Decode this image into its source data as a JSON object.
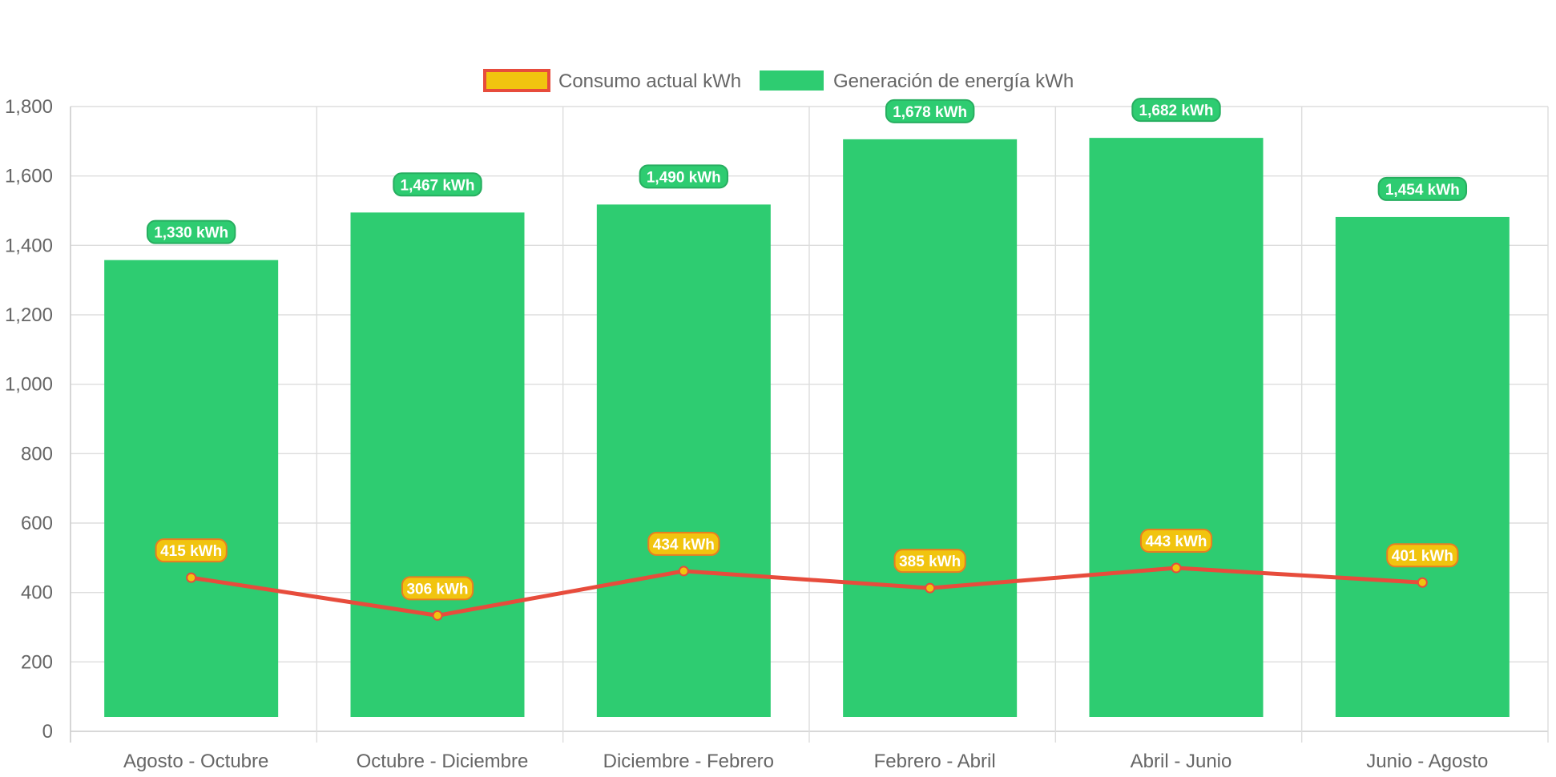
{
  "chart_data": {
    "type": "bar",
    "categories": [
      "Agosto - Octubre",
      "Octubre - Diciembre",
      "Diciembre - Febrero",
      "Febrero - Abril",
      "Abril - Junio",
      "Junio - Agosto"
    ],
    "series": [
      {
        "name": "Generación de energía kWh",
        "type": "bar",
        "color": "#2ecc71",
        "values": [
          1330,
          1467,
          1490,
          1678,
          1682,
          1454
        ],
        "labels": [
          "1,330 kWh",
          "1,467 kWh",
          "1,490 kWh",
          "1,678 kWh",
          "1,682 kWh",
          "1,454 kWh"
        ]
      },
      {
        "name": "Consumo actual kWh",
        "type": "line",
        "color": "#e74c3c",
        "point_color": "#f1c40f",
        "values": [
          415,
          306,
          434,
          385,
          443,
          401
        ],
        "labels": [
          "415 kWh",
          "306 kWh",
          "434 kWh",
          "385 kWh",
          "443 kWh",
          "401 kWh"
        ]
      }
    ],
    "legend": {
      "position": "top",
      "items": [
        {
          "label": "Consumo actual kWh",
          "fill": "#f1c40f",
          "stroke": "#e74c3c"
        },
        {
          "label": "Generación de energía kWh",
          "fill": "#2ecc71",
          "stroke": "#2ecc71"
        }
      ]
    },
    "y_ticks": [
      "0",
      "200",
      "400",
      "600",
      "800",
      "1,000",
      "1,200",
      "1,400",
      "1,600",
      "1,800"
    ],
    "ylim": [
      0,
      1800
    ],
    "grid": true,
    "title": "",
    "xlabel": "",
    "ylabel": ""
  }
}
